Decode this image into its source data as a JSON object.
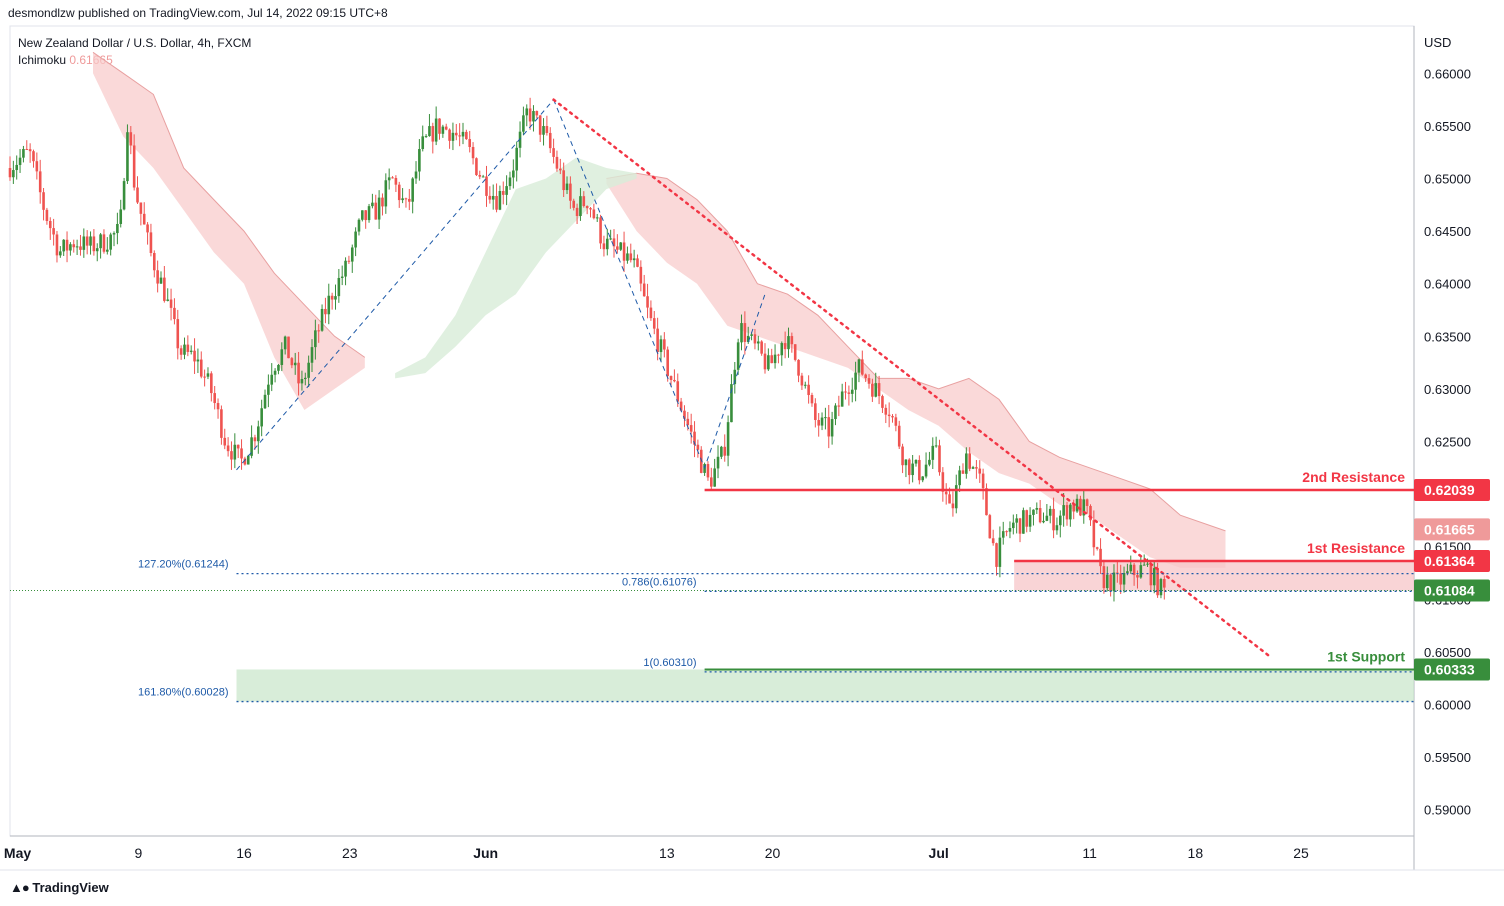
{
  "publisher_line": "desmondlzw published on TradingView.com, Jul 14, 2022 09:15 UTC+8",
  "legend": {
    "symbol_line": "New Zealand Dollar / U.S. Dollar, 4h, FXCM",
    "indicator_name": "Ichimoku",
    "indicator_value": "0.61665"
  },
  "brand": "TradingView",
  "colors": {
    "bull": "#388e3c",
    "bear": "#ef5350",
    "resistance": "#f23645",
    "support": "#388e3c",
    "fib": "#1e5aa8",
    "trendline": "#f23645",
    "cloud_bear": "#f8c9c9",
    "cloud_bull": "#d8ecd8"
  },
  "chart_data": {
    "type": "candlestick",
    "title": "New Zealand Dollar / U.S. Dollar, 4h, FXCM",
    "currency_label": "USD",
    "y_ticks": [
      "0.66000",
      "0.65500",
      "0.65000",
      "0.64500",
      "0.64000",
      "0.63500",
      "0.63000",
      "0.62500",
      "0.62000",
      "0.61500",
      "0.61000",
      "0.60500",
      "0.60000",
      "0.59500",
      "0.59000"
    ],
    "ylim": [
      0.5875,
      0.6645
    ],
    "x_ticks": [
      {
        "label": "May",
        "day": 0
      },
      {
        "label": "9",
        "day": 8
      },
      {
        "label": "16",
        "day": 15
      },
      {
        "label": "23",
        "day": 22
      },
      {
        "label": "Jun",
        "day": 31
      },
      {
        "label": "13",
        "day": 43
      },
      {
        "label": "20",
        "day": 50
      },
      {
        "label": "Jul",
        "day": 61
      },
      {
        "label": "11",
        "day": 71
      },
      {
        "label": "18",
        "day": 78
      },
      {
        "label": "25",
        "day": 85
      }
    ],
    "price_path": [
      [
        -0.5,
        0.651
      ],
      [
        1,
        0.6525
      ],
      [
        2,
        0.647
      ],
      [
        3,
        0.643
      ],
      [
        4,
        0.644
      ],
      [
        5,
        0.6435
      ],
      [
        6,
        0.644
      ],
      [
        7,
        0.645
      ],
      [
        7.5,
        0.6555
      ],
      [
        8,
        0.649
      ],
      [
        9,
        0.643
      ],
      [
        10,
        0.639
      ],
      [
        11,
        0.6335
      ],
      [
        12,
        0.633
      ],
      [
        13,
        0.63
      ],
      [
        14,
        0.625
      ],
      [
        15,
        0.623
      ],
      [
        16,
        0.626
      ],
      [
        17,
        0.632
      ],
      [
        18,
        0.634
      ],
      [
        19,
        0.63
      ],
      [
        20,
        0.635
      ],
      [
        21,
        0.639
      ],
      [
        22,
        0.6415
      ],
      [
        23,
        0.646
      ],
      [
        24,
        0.647
      ],
      [
        25,
        0.65
      ],
      [
        26,
        0.647
      ],
      [
        27,
        0.653
      ],
      [
        28,
        0.655
      ],
      [
        29,
        0.6545
      ],
      [
        30,
        0.653
      ],
      [
        31,
        0.65
      ],
      [
        32,
        0.648
      ],
      [
        33,
        0.651
      ],
      [
        34,
        0.6565
      ],
      [
        35,
        0.6545
      ],
      [
        36,
        0.651
      ],
      [
        37,
        0.647
      ],
      [
        38,
        0.648
      ],
      [
        39,
        0.644
      ],
      [
        40,
        0.643
      ],
      [
        41,
        0.642
      ],
      [
        42,
        0.637
      ],
      [
        43,
        0.633
      ],
      [
        44,
        0.629
      ],
      [
        45,
        0.625
      ],
      [
        46,
        0.621
      ],
      [
        47,
        0.624
      ],
      [
        48,
        0.636
      ],
      [
        49,
        0.634
      ],
      [
        50,
        0.632
      ],
      [
        51,
        0.635
      ],
      [
        52,
        0.632
      ],
      [
        53,
        0.627
      ],
      [
        54,
        0.626
      ],
      [
        55,
        0.63
      ],
      [
        56,
        0.632
      ],
      [
        57,
        0.63
      ],
      [
        58,
        0.628
      ],
      [
        59,
        0.623
      ],
      [
        60,
        0.622
      ],
      [
        61,
        0.624
      ],
      [
        62,
        0.618
      ],
      [
        63,
        0.624
      ],
      [
        64,
        0.621
      ],
      [
        65,
        0.614
      ],
      [
        66,
        0.617
      ],
      [
        67,
        0.6175
      ],
      [
        68,
        0.618
      ],
      [
        69,
        0.6175
      ],
      [
        70,
        0.619
      ],
      [
        71,
        0.6185
      ],
      [
        72,
        0.612
      ],
      [
        73,
        0.6115
      ],
      [
        74,
        0.6125
      ],
      [
        75,
        0.613
      ],
      [
        76,
        0.6108
      ]
    ],
    "cloud": {
      "bear": [
        {
          "upper": [
            [
              5,
              0.662
            ],
            [
              7,
              0.66
            ],
            [
              9,
              0.658
            ],
            [
              11,
              0.651
            ],
            [
              13,
              0.648
            ],
            [
              15,
              0.645
            ],
            [
              17,
              0.641
            ],
            [
              19,
              0.638
            ],
            [
              21,
              0.635
            ],
            [
              23,
              0.633
            ]
          ],
          "lower": [
            [
              5,
              0.66
            ],
            [
              7,
              0.654
            ],
            [
              9,
              0.651
            ],
            [
              11,
              0.647
            ],
            [
              13,
              0.643
            ],
            [
              15,
              0.64
            ],
            [
              17,
              0.633
            ],
            [
              19,
              0.628
            ],
            [
              21,
              0.63
            ],
            [
              23,
              0.632
            ]
          ]
        },
        {
          "upper": [
            [
              39,
              0.65
            ],
            [
              41,
              0.6505
            ],
            [
              43,
              0.65
            ],
            [
              45,
              0.648
            ],
            [
              47,
              0.645
            ],
            [
              49,
              0.64
            ],
            [
              51,
              0.639
            ],
            [
              53,
              0.637
            ],
            [
              55,
              0.634
            ],
            [
              57,
              0.631
            ],
            [
              59,
              0.631
            ],
            [
              61,
              0.63
            ],
            [
              63,
              0.631
            ],
            [
              65,
              0.629
            ],
            [
              67,
              0.625
            ],
            [
              69,
              0.6235
            ],
            [
              71,
              0.6225
            ],
            [
              73,
              0.6215
            ],
            [
              75,
              0.6205
            ],
            [
              77,
              0.618
            ],
            [
              80,
              0.6165
            ]
          ],
          "lower": [
            [
              39,
              0.6495
            ],
            [
              41,
              0.645
            ],
            [
              43,
              0.642
            ],
            [
              45,
              0.64
            ],
            [
              47,
              0.636
            ],
            [
              49,
              0.635
            ],
            [
              51,
              0.634
            ],
            [
              53,
              0.633
            ],
            [
              55,
              0.632
            ],
            [
              57,
              0.63
            ],
            [
              59,
              0.628
            ],
            [
              61,
              0.6265
            ],
            [
              63,
              0.624
            ],
            [
              65,
              0.622
            ],
            [
              67,
              0.621
            ],
            [
              69,
              0.619
            ],
            [
              71,
              0.618
            ],
            [
              73,
              0.616
            ],
            [
              75,
              0.614
            ],
            [
              77,
              0.613
            ],
            [
              80,
              0.613
            ]
          ]
        }
      ],
      "bull": [
        {
          "upper": [
            [
              25,
              0.6315
            ],
            [
              27,
              0.633
            ],
            [
              29,
              0.637
            ],
            [
              31,
              0.643
            ],
            [
              33,
              0.649
            ],
            [
              35,
              0.65
            ],
            [
              37,
              0.652
            ],
            [
              39,
              0.651
            ],
            [
              41,
              0.6505
            ]
          ],
          "lower": [
            [
              25,
              0.631
            ],
            [
              27,
              0.6315
            ],
            [
              29,
              0.634
            ],
            [
              31,
              0.637
            ],
            [
              33,
              0.639
            ],
            [
              35,
              0.643
            ],
            [
              37,
              0.646
            ],
            [
              39,
              0.649
            ],
            [
              41,
              0.65
            ]
          ]
        }
      ]
    },
    "fib_swing_1": [
      [
        14.5,
        0.6223
      ],
      [
        35.5,
        0.6575
      ]
    ],
    "fib_swing_2": [
      [
        35.5,
        0.6575
      ],
      [
        45.5,
        0.6225
      ],
      [
        49.5,
        0.639
      ]
    ],
    "trendline": [
      [
        35.5,
        0.6575
      ],
      [
        83,
        0.6045
      ]
    ],
    "levels": [
      {
        "id": "r2",
        "name": "2nd Resistance",
        "price": 0.62039,
        "value_label": "0.62039",
        "from_day": 45.5,
        "style": "solid"
      },
      {
        "id": "r1",
        "name": "1st Resistance",
        "price": 0.61364,
        "value_label": "0.61364",
        "from_day": 66,
        "style": "solid"
      },
      {
        "id": "s1",
        "name": "1st Support",
        "price": 0.60333,
        "value_label": "0.60333",
        "from_day": 45.5,
        "style": "solid"
      }
    ],
    "fib_levels": [
      {
        "label": "127.20%(0.61244)",
        "price": 0.61244,
        "from_day": 14.5,
        "label_side": "left"
      },
      {
        "label": "0.786(0.61076)",
        "price": 0.61076,
        "from_day": 45.5,
        "label_side": "left"
      },
      {
        "label": "1(0.60310)",
        "price": 0.6031,
        "from_day": 45.5,
        "label_side": "above"
      },
      {
        "label": "161.80%(0.60028)",
        "price": 0.60028,
        "from_day": 14.5,
        "label_side": "left"
      }
    ],
    "current_price": {
      "price": 0.61084,
      "label": "0.61084"
    },
    "ichimoku_price": {
      "price": 0.61665,
      "label": "0.61665"
    },
    "resistance_zone": {
      "from_day": 66,
      "top": 0.61364,
      "bottom": 0.61084
    },
    "support_zone": {
      "from_day": 14.5,
      "top": 0.60333,
      "bottom": 0.60028
    },
    "partial_axis_labels": [
      "0.61500",
      "0.61000"
    ]
  }
}
